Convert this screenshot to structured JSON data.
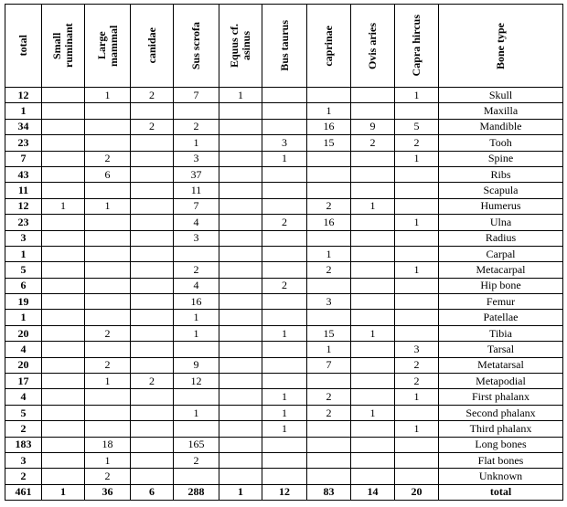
{
  "table": {
    "headers": [
      "total",
      "Small ruminant",
      "Large mammal",
      "canidae",
      "Sus scrofa",
      "Equus cf. asinus",
      "Bus taurus",
      "caprinae",
      "Ovis aries",
      "Capra hircus",
      "Bone type"
    ],
    "rows": [
      [
        12,
        null,
        1,
        2,
        7,
        1,
        null,
        null,
        null,
        1,
        "Skull"
      ],
      [
        1,
        null,
        null,
        null,
        null,
        null,
        null,
        1,
        null,
        null,
        "Maxilla"
      ],
      [
        34,
        null,
        null,
        2,
        2,
        null,
        null,
        16,
        9,
        5,
        "Mandible"
      ],
      [
        23,
        null,
        null,
        null,
        1,
        null,
        3,
        15,
        2,
        2,
        "Tooh"
      ],
      [
        7,
        null,
        2,
        null,
        3,
        null,
        1,
        null,
        null,
        1,
        "Spine"
      ],
      [
        43,
        null,
        6,
        null,
        37,
        null,
        null,
        null,
        null,
        null,
        "Ribs"
      ],
      [
        11,
        null,
        null,
        null,
        11,
        null,
        null,
        null,
        null,
        null,
        "Scapula"
      ],
      [
        12,
        1,
        1,
        null,
        7,
        null,
        null,
        2,
        1,
        null,
        "Humerus"
      ],
      [
        23,
        null,
        null,
        null,
        4,
        null,
        2,
        16,
        null,
        1,
        "Ulna"
      ],
      [
        3,
        null,
        null,
        null,
        3,
        null,
        null,
        null,
        null,
        null,
        "Radius"
      ],
      [
        1,
        null,
        null,
        null,
        null,
        null,
        null,
        1,
        null,
        null,
        "Carpal"
      ],
      [
        5,
        null,
        null,
        null,
        2,
        null,
        null,
        2,
        null,
        1,
        "Metacarpal"
      ],
      [
        6,
        null,
        null,
        null,
        4,
        null,
        2,
        null,
        null,
        null,
        "Hip bone"
      ],
      [
        19,
        null,
        null,
        null,
        16,
        null,
        null,
        3,
        null,
        null,
        "Femur"
      ],
      [
        1,
        null,
        null,
        null,
        1,
        null,
        null,
        null,
        null,
        null,
        "Patellae"
      ],
      [
        20,
        null,
        2,
        null,
        1,
        null,
        1,
        15,
        1,
        null,
        "Tibia"
      ],
      [
        4,
        null,
        null,
        null,
        null,
        null,
        null,
        1,
        null,
        3,
        "Tarsal"
      ],
      [
        20,
        null,
        2,
        null,
        9,
        null,
        null,
        7,
        null,
        2,
        "Metatarsal"
      ],
      [
        17,
        null,
        1,
        2,
        12,
        null,
        null,
        null,
        null,
        2,
        "Metapodial"
      ],
      [
        4,
        null,
        null,
        null,
        null,
        null,
        1,
        2,
        null,
        1,
        "First phalanx"
      ],
      [
        5,
        null,
        null,
        null,
        1,
        null,
        1,
        2,
        1,
        null,
        "Second phalanx"
      ],
      [
        2,
        null,
        null,
        null,
        null,
        null,
        1,
        null,
        null,
        1,
        "Third phalanx"
      ],
      [
        183,
        null,
        18,
        null,
        165,
        null,
        null,
        null,
        null,
        null,
        "Long bones"
      ],
      [
        3,
        null,
        1,
        null,
        2,
        null,
        null,
        null,
        null,
        null,
        "Flat bones"
      ],
      [
        2,
        null,
        2,
        null,
        null,
        null,
        null,
        null,
        null,
        null,
        "Unknown"
      ]
    ],
    "total_row": [
      461,
      1,
      36,
      6,
      288,
      1,
      12,
      83,
      14,
      20,
      "total"
    ]
  }
}
